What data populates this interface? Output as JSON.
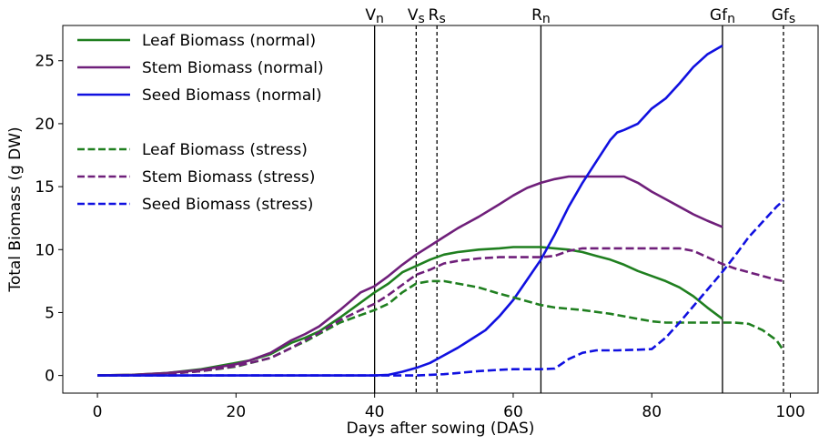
{
  "chart_data": {
    "type": "line",
    "title": "",
    "xlabel": "Days after sowing (DAS)",
    "ylabel": "Total Biomass (g DW)",
    "xlim": [
      -5,
      104
    ],
    "ylim": [
      -1.4,
      27.8
    ],
    "xticks": [
      0,
      20,
      40,
      60,
      80,
      100
    ],
    "yticks": [
      0,
      5,
      10,
      15,
      20,
      25
    ],
    "grid": false,
    "legend_position": "top-left",
    "stage_markers": [
      {
        "label": "V",
        "sub": "n",
        "x": 40,
        "style": "solid"
      },
      {
        "label": "V",
        "sub": "s",
        "x": 46,
        "style": "dashed"
      },
      {
        "label": "R",
        "sub": "s",
        "x": 49,
        "style": "dashed"
      },
      {
        "label": "R",
        "sub": "n",
        "x": 64,
        "style": "solid"
      },
      {
        "label": "Gf",
        "sub": "n",
        "x": 90.2,
        "style": "solid"
      },
      {
        "label": "Gf",
        "sub": "s",
        "x": 99,
        "style": "dashed"
      }
    ],
    "series": [
      {
        "name": "Leaf Biomass (normal)",
        "color": "#1f7f1f",
        "style": "solid",
        "x": [
          0,
          5,
          10,
          15,
          20,
          22,
          25,
          28,
          30,
          32,
          35,
          38,
          40,
          42,
          44,
          46,
          48,
          50,
          52,
          55,
          58,
          60,
          62,
          64,
          66,
          68,
          70,
          72,
          74,
          76,
          78,
          80,
          82,
          84,
          86,
          88,
          90.2
        ],
        "y": [
          0,
          0.05,
          0.2,
          0.5,
          1.0,
          1.2,
          1.7,
          2.6,
          3.0,
          3.5,
          4.6,
          5.8,
          6.6,
          7.3,
          8.2,
          8.7,
          9.2,
          9.6,
          9.8,
          10.0,
          10.1,
          10.2,
          10.2,
          10.2,
          10.1,
          10.0,
          9.8,
          9.5,
          9.2,
          8.8,
          8.3,
          7.9,
          7.5,
          7.0,
          6.3,
          5.4,
          4.5
        ]
      },
      {
        "name": "Stem Biomass (normal)",
        "color": "#6f1f7a",
        "style": "solid",
        "x": [
          0,
          5,
          10,
          15,
          20,
          22,
          25,
          28,
          30,
          32,
          35,
          38,
          40,
          42,
          44,
          46,
          48,
          50,
          52,
          55,
          58,
          60,
          62,
          64,
          66,
          68,
          70,
          72,
          74,
          76,
          78,
          80,
          82,
          84,
          86,
          88,
          90.2
        ],
        "y": [
          0,
          0.05,
          0.2,
          0.45,
          0.9,
          1.2,
          1.8,
          2.8,
          3.3,
          3.9,
          5.2,
          6.6,
          7.1,
          7.9,
          8.8,
          9.6,
          10.3,
          11.0,
          11.7,
          12.6,
          13.6,
          14.3,
          14.9,
          15.3,
          15.6,
          15.8,
          15.8,
          15.8,
          15.8,
          15.8,
          15.3,
          14.6,
          14.0,
          13.4,
          12.8,
          12.3,
          11.8
        ]
      },
      {
        "name": "Seed Biomass (normal)",
        "color": "#1010e0",
        "style": "solid",
        "x": [
          0,
          20,
          40,
          42,
          44,
          46,
          48,
          50,
          52,
          54,
          56,
          58,
          60,
          62,
          64,
          66,
          68,
          70,
          72,
          74,
          75,
          76,
          78,
          80,
          82,
          84,
          86,
          88,
          90.2
        ],
        "y": [
          0,
          0,
          0,
          0.05,
          0.3,
          0.6,
          1.0,
          1.6,
          2.2,
          2.9,
          3.6,
          4.7,
          6.0,
          7.6,
          9.2,
          11.2,
          13.4,
          15.3,
          17.0,
          18.7,
          19.3,
          19.5,
          20.0,
          21.2,
          22.0,
          23.2,
          24.5,
          25.5,
          26.2
        ]
      },
      {
        "name": "Leaf Biomass (stress)",
        "color": "#1f7f1f",
        "style": "dashed",
        "x": [
          0,
          5,
          10,
          15,
          20,
          25,
          28,
          30,
          32,
          35,
          38,
          40,
          42,
          44,
          46,
          48,
          50,
          52,
          55,
          58,
          60,
          62,
          64,
          66,
          68,
          70,
          74,
          78,
          80,
          82,
          84,
          86,
          88,
          90,
          92,
          94,
          96,
          98,
          99
        ],
        "y": [
          0,
          0.03,
          0.12,
          0.35,
          0.7,
          1.4,
          2.2,
          2.7,
          3.3,
          4.2,
          4.8,
          5.2,
          5.7,
          6.6,
          7.3,
          7.5,
          7.5,
          7.3,
          7.0,
          6.5,
          6.2,
          5.9,
          5.6,
          5.4,
          5.3,
          5.2,
          4.9,
          4.5,
          4.3,
          4.2,
          4.2,
          4.2,
          4.2,
          4.2,
          4.2,
          4.1,
          3.6,
          2.8,
          2.0
        ]
      },
      {
        "name": "Stem Biomass (stress)",
        "color": "#6f1f7a",
        "style": "dashed",
        "x": [
          0,
          5,
          10,
          15,
          20,
          25,
          28,
          30,
          32,
          35,
          38,
          40,
          42,
          44,
          46,
          48,
          50,
          52,
          55,
          58,
          60,
          62,
          64,
          66,
          68,
          70,
          74,
          78,
          80,
          82,
          84,
          86,
          88,
          90,
          92,
          94,
          96,
          98,
          99
        ],
        "y": [
          0,
          0.03,
          0.12,
          0.35,
          0.75,
          1.4,
          2.2,
          2.8,
          3.4,
          4.4,
          5.2,
          5.7,
          6.4,
          7.2,
          8.0,
          8.4,
          8.9,
          9.1,
          9.3,
          9.4,
          9.4,
          9.4,
          9.4,
          9.5,
          9.9,
          10.1,
          10.1,
          10.1,
          10.1,
          10.1,
          10.1,
          9.9,
          9.4,
          8.9,
          8.5,
          8.2,
          7.9,
          7.6,
          7.5
        ]
      },
      {
        "name": "Seed Biomass (stress)",
        "color": "#1010e0",
        "style": "dashed",
        "x": [
          0,
          20,
          40,
          44,
          46,
          48,
          50,
          52,
          55,
          58,
          60,
          62,
          64,
          66,
          68,
          70,
          72,
          75,
          78,
          80,
          82,
          84,
          86,
          88,
          90,
          92,
          94,
          96,
          98,
          99
        ],
        "y": [
          0,
          0,
          0,
          0,
          0,
          0.05,
          0.1,
          0.2,
          0.35,
          0.45,
          0.5,
          0.5,
          0.5,
          0.55,
          1.3,
          1.8,
          2.0,
          2.0,
          2.05,
          2.1,
          3.0,
          4.2,
          5.5,
          6.8,
          8.1,
          9.5,
          11.0,
          12.2,
          13.4,
          13.9
        ]
      }
    ]
  }
}
